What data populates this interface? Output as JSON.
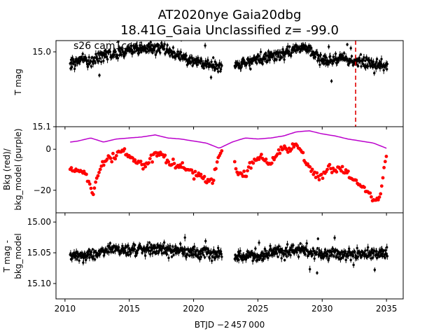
{
  "figure": {
    "title_line1": "AT2020nye  Gaia20dbg",
    "title_line2": "18.41G_Gaia Unclassified z= -99.0",
    "annotation": "s26 cam1ccd1",
    "xlabel": "BTJD −2 457 000"
  },
  "chart_data": [
    {
      "type": "scatter",
      "panel": "top",
      "ylabel": "T mag",
      "x_range": [
        2009.3,
        2036.3
      ],
      "y_range": [
        15.1,
        14.985
      ],
      "y_inverted": true,
      "yticks": [
        15.0,
        15.1
      ],
      "ytick_labels": [
        "15.0",
        "15.1"
      ],
      "series": [
        {
          "color": "#000000",
          "marker": "point with error bar",
          "segments": [
            {
              "x": [
                2010.4,
                2011.0,
                2011.5,
                2012.0,
                2012.5,
                2013.0,
                2013.5,
                2014.0,
                2014.5,
                2015.0,
                2015.5,
                2016.0,
                2016.5,
                2017.0,
                2017.5,
                2018.0,
                2018.5,
                2019.0,
                2019.5,
                2020.0,
                2020.5,
                2021.0,
                2021.5,
                2022.2
              ],
              "y": [
                15.017,
                15.012,
                15.01,
                15.014,
                15.008,
                15.006,
                15.002,
                15.004,
                15.0,
                14.998,
                14.996,
                14.998,
                14.994,
                14.997,
                14.996,
                15.0,
                15.004,
                15.006,
                15.01,
                15.012,
                15.014,
                15.016,
                15.018,
                15.02
              ]
            },
            {
              "x": [
                2023.2,
                2023.5,
                2024.0,
                2024.5,
                2025.0,
                2025.5,
                2026.0,
                2026.5,
                2027.0,
                2027.5,
                2028.0,
                2028.5,
                2029.0,
                2029.5,
                2030.0,
                2030.5,
                2031.0,
                2031.5,
                2032.0,
                2032.5,
                2033.0,
                2033.5,
                2034.0,
                2034.5,
                2035.1
              ],
              "y": [
                15.02,
                15.018,
                15.014,
                15.012,
                15.008,
                15.01,
                15.006,
                15.004,
                15.002,
                15.0,
                14.996,
                14.995,
                14.998,
                15.004,
                15.01,
                15.012,
                15.01,
                15.008,
                15.01,
                15.012,
                15.013,
                15.014,
                15.015,
                15.016,
                15.02
              ]
            }
          ]
        }
      ],
      "vline": {
        "x": 2032.6,
        "color": "#e00000",
        "style": "dashed"
      }
    },
    {
      "type": "scatter",
      "panel": "middle",
      "ylabel_line1": "Bkg (red)/",
      "ylabel_line2": "bkg_model (purple)",
      "x_range": [
        2009.3,
        2036.3
      ],
      "y_range": [
        -31,
        11
      ],
      "yticks": [
        0,
        -20
      ],
      "ytick_labels": [
        "0",
        "−20"
      ],
      "series": [
        {
          "color": "#ff0000",
          "marker": "dot",
          "segments": [
            {
              "x": [
                2010.4,
                2011.0,
                2011.5,
                2011.9,
                2012.2,
                2012.6,
                2013.0,
                2013.5,
                2014.0,
                2014.5,
                2015.0,
                2015.5,
                2016.0,
                2016.5,
                2017.0,
                2017.5,
                2018.0,
                2018.5,
                2019.0,
                2019.5,
                2020.0,
                2020.5,
                2021.0,
                2021.5,
                2021.9,
                2022.2
              ],
              "y": [
                -9,
                -10,
                -11,
                -18,
                -21,
                -12,
                -6,
                -4,
                -3,
                0,
                -3,
                -5,
                -8,
                -6,
                -3,
                -2,
                -6,
                -8,
                -9,
                -10,
                -12,
                -13,
                -16,
                -15,
                -5,
                0
              ]
            },
            {
              "x": [
                2023.2,
                2023.5,
                2024.0,
                2024.5,
                2025.0,
                2025.5,
                2026.0,
                2026.5,
                2027.0,
                2027.5,
                2028.0,
                2028.5,
                2029.0,
                2029.5,
                2030.0,
                2030.5,
                2031.0,
                2031.5,
                2032.0,
                2032.5,
                2033.0,
                2033.5,
                2034.0,
                2034.5,
                2035.0
              ],
              "y": [
                -8,
                -12,
                -14,
                -7,
                -4,
                -6,
                -8,
                -2,
                1,
                -1,
                3,
                -3,
                -10,
                -12,
                -14,
                -8,
                -10,
                -10,
                -11,
                -15,
                -18,
                -20,
                -25,
                -24,
                -1
              ]
            }
          ]
        },
        {
          "color": "#bb00cc",
          "marker": "line",
          "segments": [
            {
              "x": [
                2010.4,
                2011.0,
                2012.0,
                2013.0,
                2014.0,
                2015.0,
                2016.0,
                2017.0,
                2018.0,
                2019.0,
                2020.0,
                2021.0,
                2022.0,
                2023.0,
                2024.0,
                2025.0,
                2026.0,
                2027.0,
                2028.0,
                2029.0,
                2030.0,
                2031.0,
                2032.0,
                2033.0,
                2034.0,
                2035.0
              ],
              "y": [
                3.5,
                4.0,
                5.5,
                3.5,
                5.0,
                5.5,
                6.0,
                7.0,
                5.5,
                5.0,
                4.0,
                3.0,
                0.5,
                3.5,
                5.5,
                5.0,
                5.5,
                6.5,
                8.5,
                9.0,
                7.5,
                6.5,
                5.0,
                4.0,
                3.0,
                0.5
              ]
            }
          ]
        }
      ]
    },
    {
      "type": "scatter",
      "panel": "bottom",
      "ylabel_line1": "T mag -",
      "ylabel_line2": "bkg_model",
      "x_range": [
        2009.3,
        2036.3
      ],
      "y_range": [
        15.125,
        14.985
      ],
      "y_inverted": true,
      "yticks": [
        15.0,
        15.05,
        15.1
      ],
      "ytick_labels": [
        "15.00",
        "15.05",
        "15.10"
      ],
      "xticks": [
        2010,
        2015,
        2020,
        2025,
        2030,
        2035
      ],
      "xtick_labels": [
        "2010",
        "2015",
        "2020",
        "2025",
        "2030",
        "2035"
      ],
      "series": [
        {
          "color": "#000000",
          "marker": "point with error bar",
          "segments": [
            {
              "x": [
                2010.4,
                2011.0,
                2011.5,
                2012.0,
                2012.5,
                2013.0,
                2013.5,
                2014.0,
                2014.5,
                2015.0,
                2015.5,
                2016.0,
                2016.5,
                2017.0,
                2017.5,
                2018.0,
                2018.5,
                2019.0,
                2019.5,
                2020.0,
                2020.5,
                2021.0,
                2021.5,
                2022.2
              ],
              "y": [
                15.056,
                15.054,
                15.056,
                15.052,
                15.05,
                15.046,
                15.044,
                15.046,
                15.044,
                15.046,
                15.044,
                15.046,
                15.044,
                15.044,
                15.046,
                15.048,
                15.046,
                15.048,
                15.05,
                15.05,
                15.052,
                15.05,
                15.052,
                15.05
              ]
            },
            {
              "x": [
                2023.2,
                2023.5,
                2024.0,
                2024.5,
                2025.0,
                2025.5,
                2026.0,
                2026.5,
                2027.0,
                2027.5,
                2028.0,
                2028.5,
                2029.0,
                2029.5,
                2030.0,
                2030.5,
                2031.0,
                2031.5,
                2032.0,
                2032.5,
                2033.0,
                2033.5,
                2034.0,
                2034.5,
                2035.1
              ],
              "y": [
                15.058,
                15.056,
                15.054,
                15.052,
                15.056,
                15.052,
                15.05,
                15.048,
                15.048,
                15.046,
                15.046,
                15.044,
                15.048,
                15.05,
                15.052,
                15.052,
                15.05,
                15.052,
                15.05,
                15.052,
                15.05,
                15.052,
                15.05,
                15.052,
                15.05
              ]
            }
          ]
        }
      ]
    }
  ]
}
